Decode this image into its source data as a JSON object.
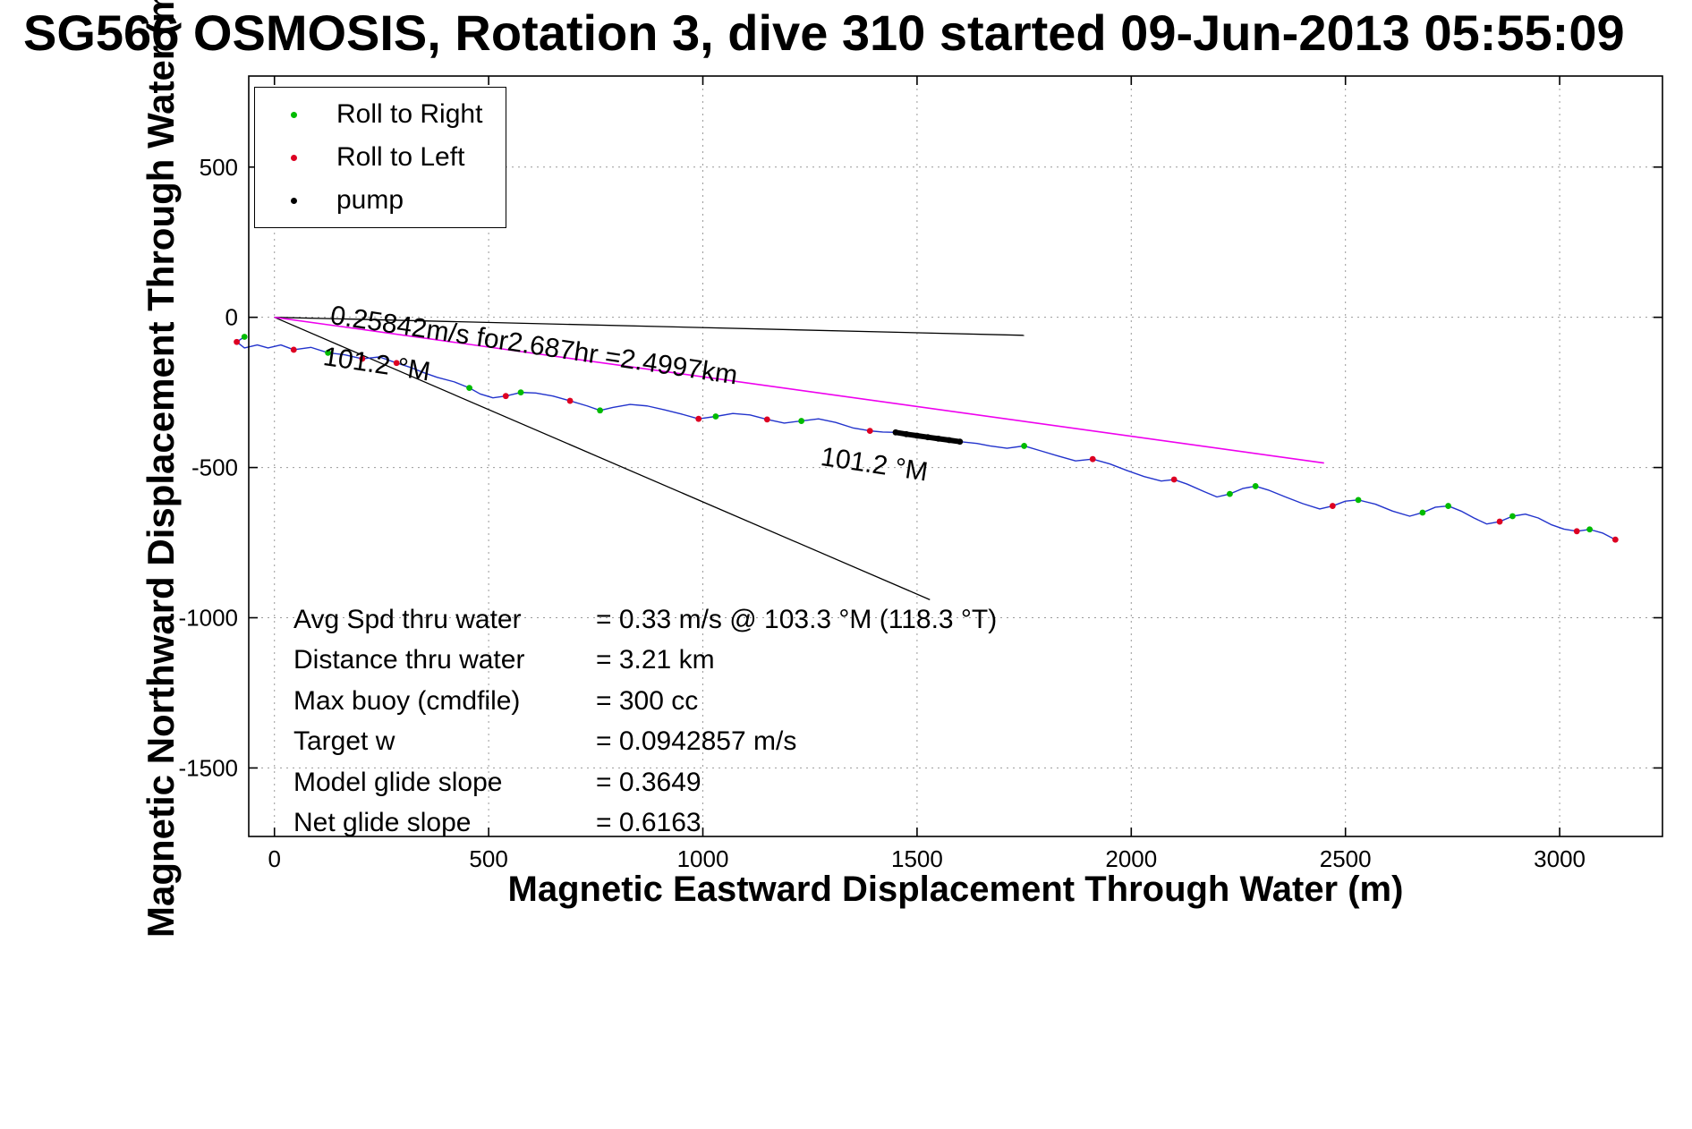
{
  "title": "SG566 OSMOSIS, Rotation 3, dive 310 started 09-Jun-2013 05:55:09",
  "axes": {
    "xlabel": "Magnetic Eastward Displacement Through Water (m)",
    "ylabel": "Magnetic Northward Displacement Through Water (m)"
  },
  "legend": {
    "items": [
      {
        "label": "Roll to Right",
        "color": "#00bb00"
      },
      {
        "label": "Roll to Left",
        "color": "#dd0022"
      },
      {
        "label": "pump",
        "color": "#000000"
      }
    ]
  },
  "annotations": [
    {
      "name": "speed-annotation",
      "text": "0.25842m/s for2.687hr =2.4997km"
    },
    {
      "name": "bearing-annotation-1",
      "text": "101.2 °M"
    },
    {
      "name": "bearing-annotation-2",
      "text": "101.2 °M"
    }
  ],
  "stats": {
    "rows": [
      {
        "label": "Avg Spd thru water",
        "value": "=  0.33 m/s @ 103.3 °M (118.3 °T)"
      },
      {
        "label": "Distance thru water",
        "value": "=  3.21 km"
      },
      {
        "label": "Max buoy (cmdfile)",
        "value": "= 300 cc"
      },
      {
        "label": "Target w",
        "value": "= 0.0942857 m/s"
      },
      {
        "label": "Model glide slope",
        "value": "= 0.3649"
      },
      {
        "label": "Net glide slope",
        "value": "= 0.6163"
      }
    ]
  },
  "chart_data": {
    "type": "line",
    "title": "SG566 OSMOSIS, Rotation 3, dive 310 started 09-Jun-2013 05:55:09",
    "xlabel": "Magnetic Eastward Displacement Through Water (m)",
    "ylabel": "Magnetic Northward Displacement Through Water (m)",
    "x_range": [
      -60,
      3240
    ],
    "y_range": [
      -1728,
      803
    ],
    "x_ticks": [
      0,
      500,
      1000,
      1500,
      2000,
      2500,
      3000
    ],
    "y_ticks": [
      500,
      0,
      -500,
      -1000,
      -1500
    ],
    "grid": true,
    "legend_position": "top-left",
    "track": {
      "name": "glider-track-through-water",
      "color": "#2233cc",
      "points": [
        [
          -70,
          -65
        ],
        [
          -88,
          -82
        ],
        [
          -70,
          -102
        ],
        [
          -40,
          -92
        ],
        [
          -15,
          -102
        ],
        [
          15,
          -92
        ],
        [
          45,
          -108
        ],
        [
          85,
          -100
        ],
        [
          125,
          -118
        ],
        [
          165,
          -125
        ],
        [
          205,
          -138
        ],
        [
          245,
          -132
        ],
        [
          285,
          -152
        ],
        [
          320,
          -168
        ],
        [
          350,
          -185
        ],
        [
          380,
          -200
        ],
        [
          420,
          -215
        ],
        [
          455,
          -235
        ],
        [
          480,
          -255
        ],
        [
          510,
          -268
        ],
        [
          540,
          -262
        ],
        [
          575,
          -250
        ],
        [
          610,
          -252
        ],
        [
          650,
          -262
        ],
        [
          690,
          -278
        ],
        [
          730,
          -295
        ],
        [
          760,
          -310
        ],
        [
          790,
          -300
        ],
        [
          830,
          -290
        ],
        [
          870,
          -295
        ],
        [
          910,
          -308
        ],
        [
          950,
          -322
        ],
        [
          990,
          -338
        ],
        [
          1030,
          -330
        ],
        [
          1070,
          -320
        ],
        [
          1110,
          -325
        ],
        [
          1150,
          -340
        ],
        [
          1190,
          -352
        ],
        [
          1230,
          -345
        ],
        [
          1270,
          -338
        ],
        [
          1310,
          -350
        ],
        [
          1350,
          -368
        ],
        [
          1390,
          -378
        ],
        [
          1420,
          -382
        ],
        [
          1450,
          -383
        ],
        [
          1500,
          -394
        ],
        [
          1550,
          -404
        ],
        [
          1600,
          -414
        ],
        [
          1640,
          -420
        ],
        [
          1670,
          -428
        ],
        [
          1710,
          -436
        ],
        [
          1750,
          -428
        ],
        [
          1790,
          -445
        ],
        [
          1830,
          -462
        ],
        [
          1870,
          -478
        ],
        [
          1910,
          -472
        ],
        [
          1950,
          -488
        ],
        [
          1990,
          -510
        ],
        [
          2030,
          -530
        ],
        [
          2070,
          -545
        ],
        [
          2100,
          -540
        ],
        [
          2130,
          -555
        ],
        [
          2170,
          -580
        ],
        [
          2200,
          -598
        ],
        [
          2230,
          -588
        ],
        [
          2260,
          -570
        ],
        [
          2290,
          -562
        ],
        [
          2320,
          -575
        ],
        [
          2360,
          -598
        ],
        [
          2400,
          -620
        ],
        [
          2440,
          -638
        ],
        [
          2470,
          -628
        ],
        [
          2500,
          -612
        ],
        [
          2530,
          -608
        ],
        [
          2570,
          -622
        ],
        [
          2610,
          -645
        ],
        [
          2650,
          -662
        ],
        [
          2680,
          -650
        ],
        [
          2710,
          -632
        ],
        [
          2740,
          -628
        ],
        [
          2770,
          -645
        ],
        [
          2800,
          -668
        ],
        [
          2830,
          -688
        ],
        [
          2860,
          -680
        ],
        [
          2890,
          -662
        ],
        [
          2920,
          -655
        ],
        [
          2950,
          -668
        ],
        [
          2980,
          -690
        ],
        [
          3010,
          -705
        ],
        [
          3040,
          -712
        ],
        [
          3070,
          -706
        ],
        [
          3100,
          -718
        ],
        [
          3130,
          -740
        ]
      ]
    },
    "markers": {
      "roll_right": {
        "label": "Roll to Right",
        "color": "#00bb00",
        "points": [
          [
            -70,
            -65
          ],
          [
            125,
            -118
          ],
          [
            455,
            -235
          ],
          [
            575,
            -250
          ],
          [
            760,
            -310
          ],
          [
            1030,
            -330
          ],
          [
            1230,
            -345
          ],
          [
            1750,
            -428
          ],
          [
            2230,
            -588
          ],
          [
            2290,
            -562
          ],
          [
            2530,
            -608
          ],
          [
            2680,
            -650
          ],
          [
            2740,
            -628
          ],
          [
            2890,
            -662
          ],
          [
            3070,
            -706
          ]
        ]
      },
      "roll_left": {
        "label": "Roll to Left",
        "color": "#dd0022",
        "points": [
          [
            -88,
            -82
          ],
          [
            45,
            -108
          ],
          [
            205,
            -138
          ],
          [
            285,
            -152
          ],
          [
            540,
            -262
          ],
          [
            690,
            -278
          ],
          [
            990,
            -338
          ],
          [
            1150,
            -340
          ],
          [
            1390,
            -378
          ],
          [
            1910,
            -472
          ],
          [
            2100,
            -540
          ],
          [
            2470,
            -628
          ],
          [
            2860,
            -680
          ],
          [
            3040,
            -712
          ],
          [
            3130,
            -740
          ]
        ]
      },
      "pump": {
        "label": "pump",
        "color": "#000000",
        "points": [
          [
            1450,
            -383
          ],
          [
            1475,
            -389
          ],
          [
            1500,
            -394
          ],
          [
            1525,
            -399
          ],
          [
            1550,
            -404
          ],
          [
            1575,
            -409
          ],
          [
            1600,
            -414
          ]
        ]
      }
    },
    "ref_lines": [
      {
        "name": "shallow-reference-line",
        "color": "#000000",
        "width": 1.3,
        "points": [
          [
            0,
            0
          ],
          [
            1750,
            -60
          ]
        ]
      },
      {
        "name": "net-glide-reference-line",
        "color": "#000000",
        "width": 1.3,
        "points": [
          [
            0,
            0
          ],
          [
            1530,
            -940
          ]
        ]
      },
      {
        "name": "bearing-101.2M-line",
        "color": "#ee00ee",
        "width": 1.6,
        "points": [
          [
            0,
            0
          ],
          [
            2450,
            -485
          ]
        ]
      }
    ]
  }
}
